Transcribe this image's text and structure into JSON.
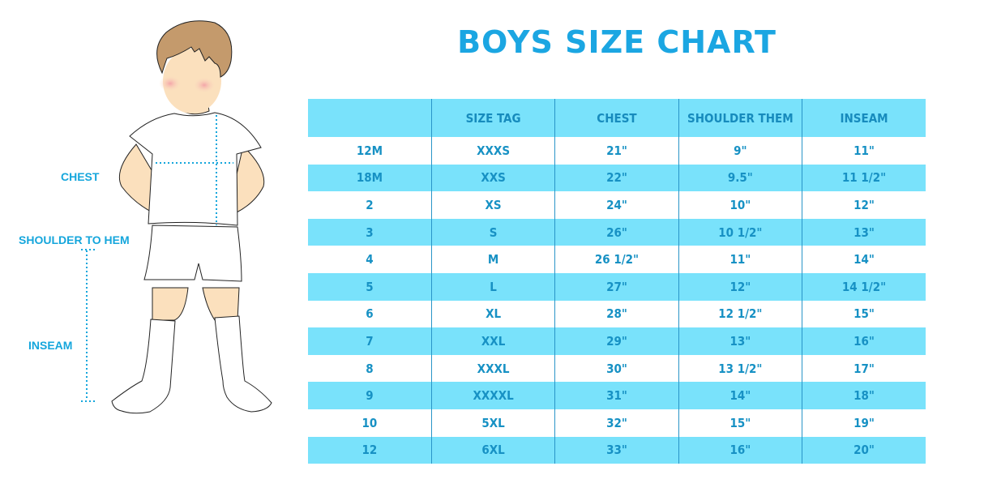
{
  "title": "BOYS SIZE CHART",
  "labels": {
    "chest": "CHEST",
    "shoulder_to_hem": "SHOULDER TO HEM",
    "inseam": "INSEAM"
  },
  "colors": {
    "accent": "#1ba6e2",
    "row_highlight": "#79e2fb",
    "text": "#1791c4"
  },
  "table": {
    "headers": [
      "",
      "SIZE TAG",
      "CHEST",
      "SHOULDER THEM",
      "INSEAM"
    ],
    "rows": [
      [
        "12M",
        "XXXS",
        "21\"",
        "9\"",
        "11\""
      ],
      [
        "18M",
        "XXS",
        "22\"",
        "9.5\"",
        "11 1/2\""
      ],
      [
        "2",
        "XS",
        "24\"",
        "10\"",
        "12\""
      ],
      [
        "3",
        "S",
        "26\"",
        "10 1/2\"",
        "13\""
      ],
      [
        "4",
        "M",
        "26 1/2\"",
        "11\"",
        "14\""
      ],
      [
        "5",
        "L",
        "27\"",
        "12\"",
        "14 1/2\""
      ],
      [
        "6",
        "XL",
        "28\"",
        "12 1/2\"",
        "15\""
      ],
      [
        "7",
        "XXL",
        "29\"",
        "13\"",
        "16\""
      ],
      [
        "8",
        "XXXL",
        "30\"",
        "13 1/2\"",
        "17\""
      ],
      [
        "9",
        "XXXXL",
        "31\"",
        "14\"",
        "18\""
      ],
      [
        "10",
        "5XL",
        "32\"",
        "15\"",
        "19\""
      ],
      [
        "12",
        "6XL",
        "33\"",
        "16\"",
        "20\""
      ]
    ]
  }
}
